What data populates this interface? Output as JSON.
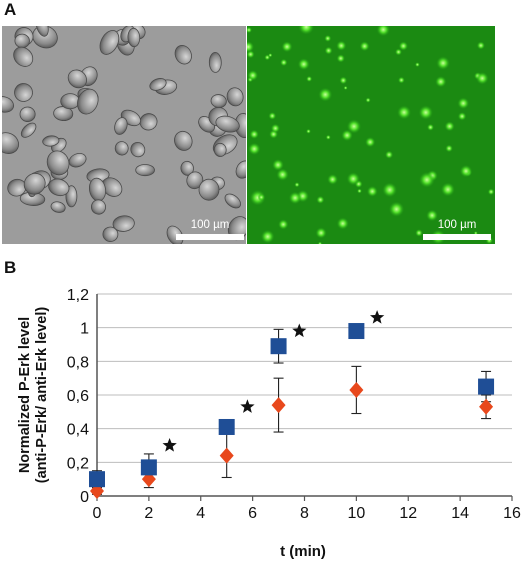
{
  "panel_a": {
    "label": "A",
    "brightfield_scalebar": "100 µm",
    "fluorescence_scalebar": "100 µm"
  },
  "panel_b": {
    "label": "B"
  },
  "colors": {
    "series_blue": "#1f4e96",
    "series_red": "#e8481c",
    "fluorescence_green": "#1b8a12",
    "brightfield_gray": "#9a9a9a"
  },
  "chart_data": {
    "type": "scatter",
    "xlabel": "t (min)",
    "ylabel": [
      "Normalized P-Erk level",
      "(anti-P-Erk/ anti-Erk level)"
    ],
    "xlim": [
      0,
      16
    ],
    "ylim": [
      0,
      1.2
    ],
    "x_ticks": [
      "0",
      "2",
      "4",
      "6",
      "8",
      "10",
      "12",
      "14",
      "16"
    ],
    "y_ticks": [
      "0",
      "0,2",
      "0,4",
      "0,6",
      "0,8",
      "1",
      "1,2"
    ],
    "grid": "horizontal",
    "legend": "none",
    "series": [
      {
        "marker": "square",
        "color": "#1f4e96",
        "points": [
          {
            "x": 0,
            "y": 0.1,
            "err": 0.05
          },
          {
            "x": 2,
            "y": 0.17,
            "err": 0.08
          },
          {
            "x": 5,
            "y": 0.41,
            "err": 0.04
          },
          {
            "x": 7,
            "y": 0.89,
            "err": 0.1
          },
          {
            "x": 10,
            "y": 0.98,
            "err": 0.02
          },
          {
            "x": 15,
            "y": 0.65,
            "err": 0.09
          }
        ]
      },
      {
        "marker": "diamond",
        "color": "#e8481c",
        "points": [
          {
            "x": 0,
            "y": 0.03,
            "err": 0.02
          },
          {
            "x": 2,
            "y": 0.1,
            "err": 0.05
          },
          {
            "x": 5,
            "y": 0.24,
            "err": 0.13
          },
          {
            "x": 7,
            "y": 0.54,
            "err": 0.16
          },
          {
            "x": 10,
            "y": 0.63,
            "err": 0.14
          },
          {
            "x": 15,
            "y": 0.53,
            "err": 0.07
          }
        ]
      }
    ],
    "significance_stars": [
      {
        "x": 2.8,
        "y": 0.3
      },
      {
        "x": 5.8,
        "y": 0.53
      },
      {
        "x": 7.8,
        "y": 0.98
      },
      {
        "x": 10.8,
        "y": 1.06
      }
    ]
  }
}
